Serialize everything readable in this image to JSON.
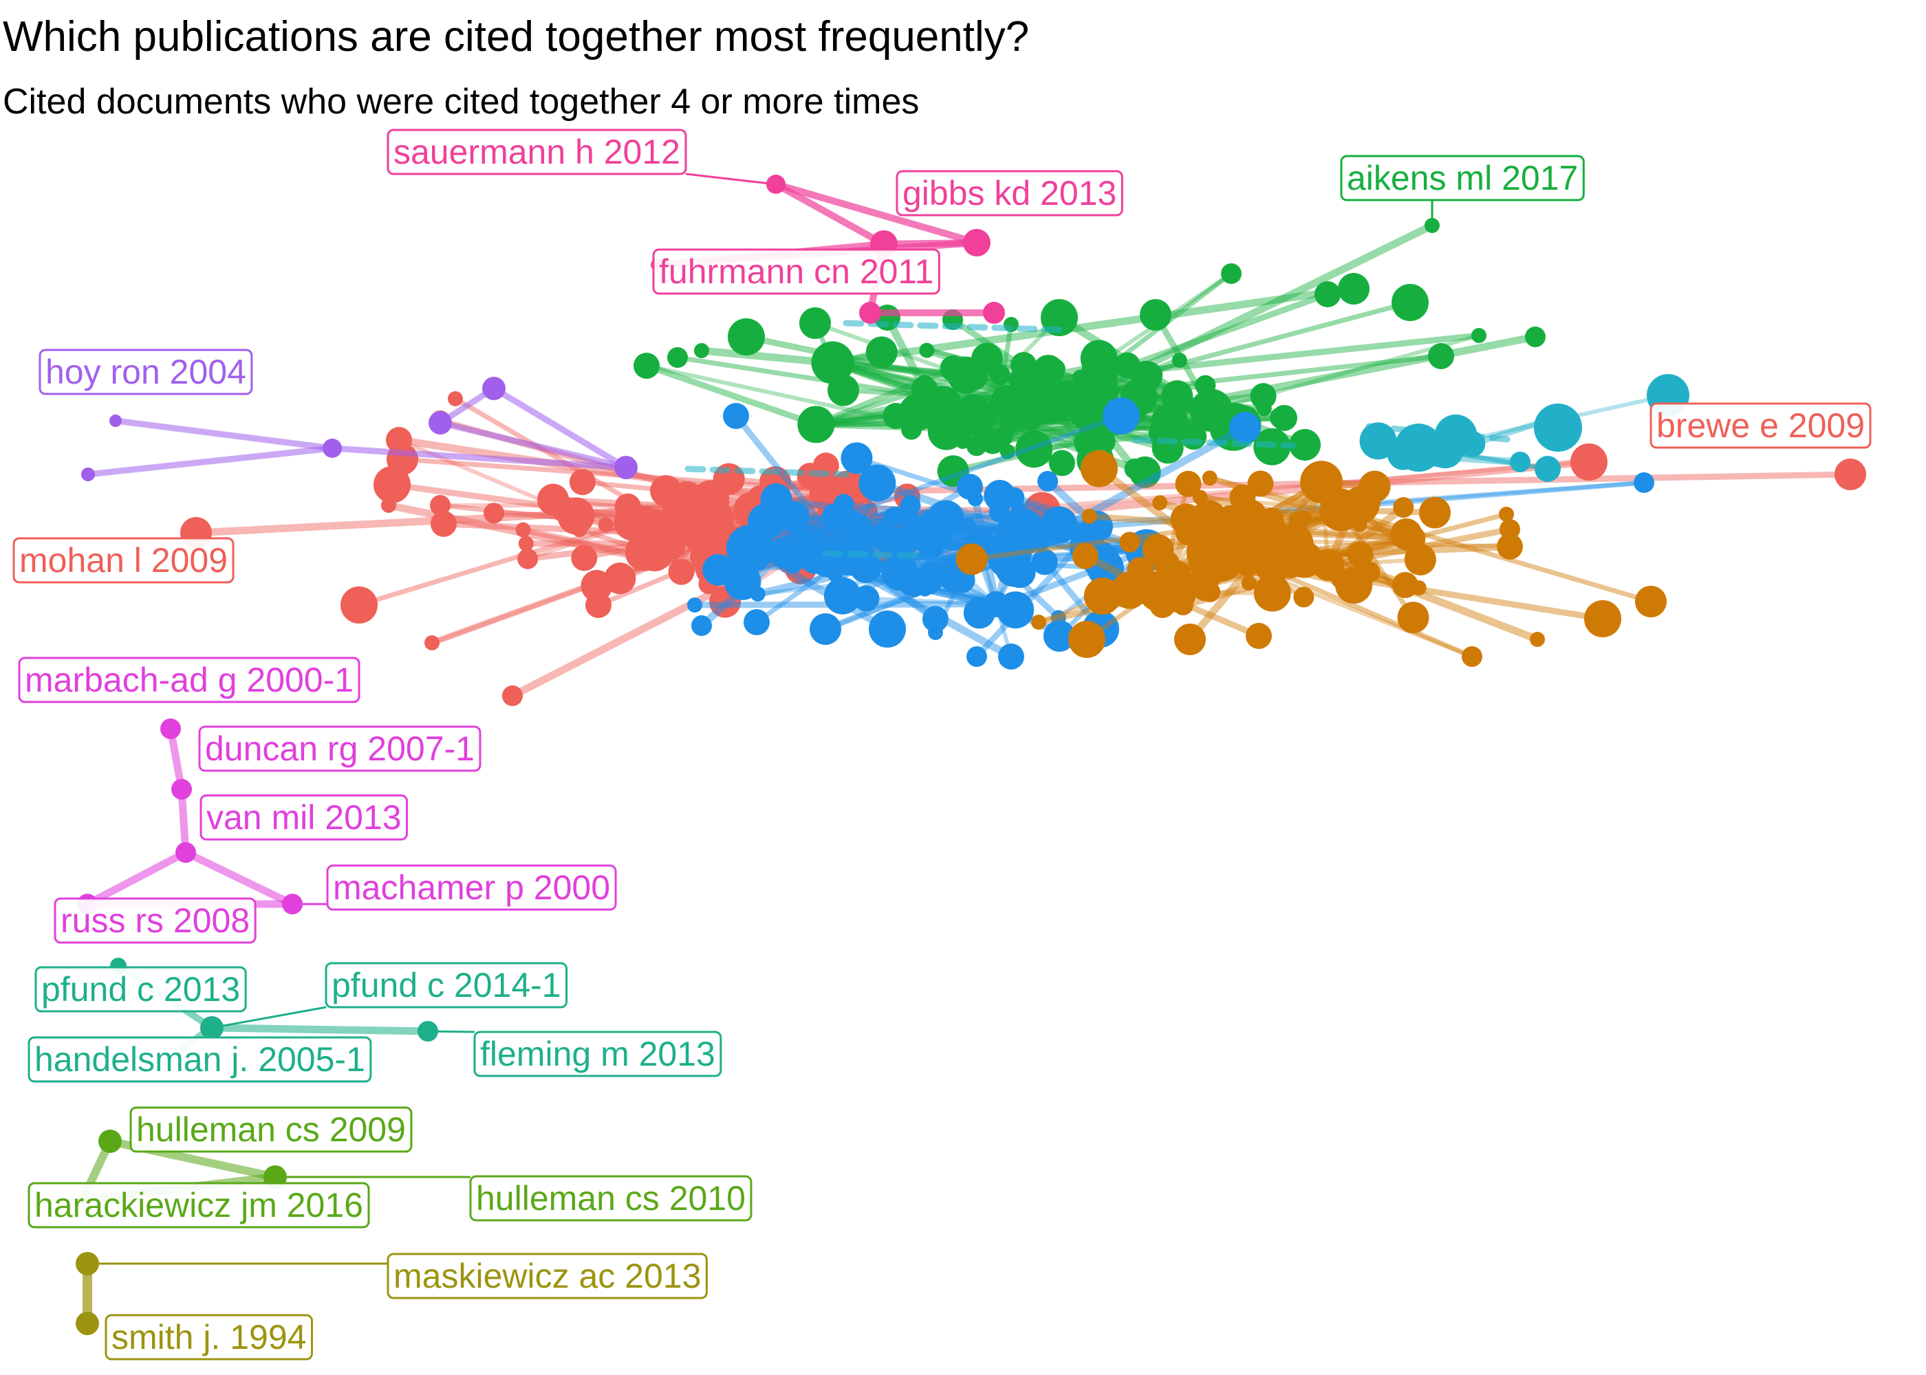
{
  "title": "Which publications are cited together most frequently?",
  "subtitle": "Cited documents who were cited together 4 or more times",
  "colors": {
    "pink": "#F0409A",
    "green": "#16AF3F",
    "blue": "#1D8FE8",
    "red": "#EE6058",
    "orange": "#D07A06",
    "cyan": "#22B0C8",
    "purple": "#A060EC",
    "magenta": "#E040DC",
    "teal": "#1DB08A",
    "lime": "#5AA818",
    "olive": "#9C9410"
  },
  "labels": {
    "sauermann": "sauermann h 2012",
    "gibbs": "gibbs kd 2013",
    "fuhrmann": "fuhrmann cn 2011",
    "aikens": "aikens ml 2017",
    "hoy": "hoy ron 2004",
    "brewe": "brewe e 2009",
    "mohan": "mohan l 2009",
    "marbach": "marbach-ad g 2000-1",
    "duncan": "duncan rg 2007-1",
    "vanmil": "van mil 2013",
    "machamer": "machamer p 2000",
    "russ": "russ rs 2008",
    "pfund2013": "pfund c 2013",
    "pfund2014": "pfund c 2014-1",
    "handelsman": "handelsman j. 2005-1",
    "fleming": "fleming m 2013",
    "hulleman2009": "hulleman cs 2009",
    "harackiewicz": "harackiewicz jm 2016",
    "hulleman2010": "hulleman cs 2010",
    "maskiewicz": "maskiewicz ac 2013",
    "smith": "smith j. 1994"
  }
}
